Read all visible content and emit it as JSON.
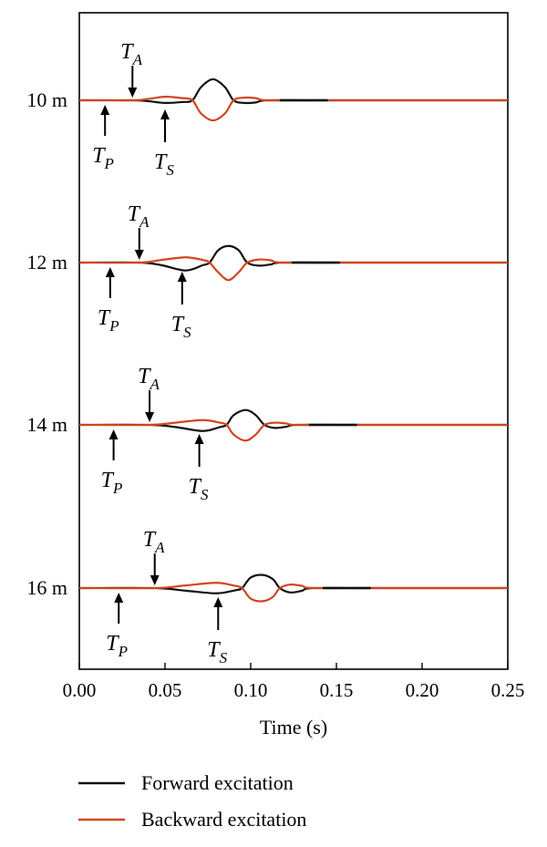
{
  "chart_data": {
    "type": "line",
    "xlabel": "Time (s)",
    "xlim": [
      0,
      0.25
    ],
    "x_ticks": [
      {
        "value": 0.0,
        "label": "0.00"
      },
      {
        "value": 0.05,
        "label": "0.05"
      },
      {
        "value": 0.1,
        "label": "0.10"
      },
      {
        "value": 0.15,
        "label": "0.15"
      },
      {
        "value": 0.2,
        "label": "0.20"
      },
      {
        "value": 0.25,
        "label": "0.25"
      }
    ],
    "ylabel": "",
    "legend_position": "bottom",
    "series": [
      {
        "name": "Forward excitation",
        "color": "#111111"
      },
      {
        "name": "Backward excitation",
        "color": "#d2451e"
      }
    ],
    "rows": [
      {
        "label": "10 m",
        "T_P": 0.015,
        "T_A": 0.031,
        "T_S": 0.05,
        "signal_end": 0.145,
        "forward": [
          [
            0.0,
            0.0
          ],
          [
            0.031,
            0.0
          ],
          [
            0.04,
            -0.02
          ],
          [
            0.05,
            -0.06
          ],
          [
            0.06,
            -0.04
          ],
          [
            0.066,
            0.0
          ],
          [
            0.071,
            0.3
          ],
          [
            0.078,
            0.48
          ],
          [
            0.085,
            0.3
          ],
          [
            0.09,
            0.0
          ],
          [
            0.096,
            -0.06
          ],
          [
            0.103,
            -0.05
          ],
          [
            0.11,
            0.0
          ],
          [
            0.145,
            0.0
          ],
          [
            0.25,
            0.0
          ]
        ],
        "backward": [
          [
            0.0,
            0.0
          ],
          [
            0.031,
            0.0
          ],
          [
            0.04,
            0.03
          ],
          [
            0.05,
            0.08
          ],
          [
            0.06,
            0.05
          ],
          [
            0.066,
            0.0
          ],
          [
            0.071,
            -0.3
          ],
          [
            0.078,
            -0.46
          ],
          [
            0.085,
            -0.3
          ],
          [
            0.09,
            0.0
          ],
          [
            0.096,
            0.06
          ],
          [
            0.103,
            0.05
          ],
          [
            0.11,
            0.0
          ],
          [
            0.145,
            0.0
          ],
          [
            0.25,
            0.0
          ]
        ]
      },
      {
        "label": "12 m",
        "T_P": 0.018,
        "T_A": 0.035,
        "T_S": 0.06,
        "signal_end": 0.152,
        "forward": [
          [
            0.0,
            0.0
          ],
          [
            0.035,
            0.0
          ],
          [
            0.048,
            -0.06
          ],
          [
            0.062,
            -0.18
          ],
          [
            0.072,
            -0.06
          ],
          [
            0.076,
            0.0
          ],
          [
            0.081,
            0.28
          ],
          [
            0.087,
            0.38
          ],
          [
            0.093,
            0.28
          ],
          [
            0.098,
            0.0
          ],
          [
            0.105,
            -0.07
          ],
          [
            0.112,
            -0.04
          ],
          [
            0.118,
            0.0
          ],
          [
            0.152,
            0.0
          ],
          [
            0.25,
            0.0
          ]
        ],
        "backward": [
          [
            0.0,
            0.0
          ],
          [
            0.035,
            0.0
          ],
          [
            0.048,
            0.06
          ],
          [
            0.062,
            0.12
          ],
          [
            0.072,
            0.06
          ],
          [
            0.076,
            0.0
          ],
          [
            0.081,
            -0.22
          ],
          [
            0.087,
            -0.4
          ],
          [
            0.093,
            -0.22
          ],
          [
            0.098,
            0.0
          ],
          [
            0.105,
            0.07
          ],
          [
            0.112,
            0.05
          ],
          [
            0.118,
            0.0
          ],
          [
            0.152,
            0.0
          ],
          [
            0.25,
            0.0
          ]
        ]
      },
      {
        "label": "14 m",
        "T_P": 0.02,
        "T_A": 0.041,
        "T_S": 0.07,
        "signal_end": 0.162,
        "forward": [
          [
            0.0,
            0.0
          ],
          [
            0.041,
            0.0
          ],
          [
            0.056,
            -0.05
          ],
          [
            0.072,
            -0.14
          ],
          [
            0.082,
            -0.05
          ],
          [
            0.086,
            0.0
          ],
          [
            0.09,
            0.22
          ],
          [
            0.097,
            0.34
          ],
          [
            0.103,
            0.22
          ],
          [
            0.108,
            0.0
          ],
          [
            0.114,
            -0.07
          ],
          [
            0.121,
            -0.04
          ],
          [
            0.127,
            0.0
          ],
          [
            0.162,
            0.0
          ],
          [
            0.25,
            0.0
          ]
        ],
        "backward": [
          [
            0.0,
            0.0
          ],
          [
            0.041,
            0.0
          ],
          [
            0.056,
            0.05
          ],
          [
            0.072,
            0.11
          ],
          [
            0.082,
            0.05
          ],
          [
            0.086,
            0.0
          ],
          [
            0.09,
            -0.22
          ],
          [
            0.097,
            -0.36
          ],
          [
            0.103,
            -0.22
          ],
          [
            0.108,
            0.0
          ],
          [
            0.114,
            0.05
          ],
          [
            0.121,
            0.03
          ],
          [
            0.127,
            0.0
          ],
          [
            0.162,
            0.0
          ],
          [
            0.25,
            0.0
          ]
        ]
      },
      {
        "label": "16 m",
        "T_P": 0.023,
        "T_A": 0.044,
        "T_S": 0.081,
        "signal_end": 0.17,
        "forward": [
          [
            0.0,
            0.0
          ],
          [
            0.044,
            0.0
          ],
          [
            0.062,
            -0.06
          ],
          [
            0.08,
            -0.12
          ],
          [
            0.091,
            -0.05
          ],
          [
            0.095,
            0.0
          ],
          [
            0.1,
            0.24
          ],
          [
            0.107,
            0.3
          ],
          [
            0.113,
            0.2
          ],
          [
            0.117,
            0.0
          ],
          [
            0.123,
            -0.1
          ],
          [
            0.13,
            -0.06
          ],
          [
            0.136,
            0.0
          ],
          [
            0.17,
            0.0
          ],
          [
            0.25,
            0.0
          ]
        ],
        "backward": [
          [
            0.0,
            0.0
          ],
          [
            0.044,
            0.0
          ],
          [
            0.062,
            0.06
          ],
          [
            0.08,
            0.12
          ],
          [
            0.091,
            0.05
          ],
          [
            0.095,
            0.0
          ],
          [
            0.1,
            -0.24
          ],
          [
            0.107,
            -0.3
          ],
          [
            0.113,
            -0.2
          ],
          [
            0.117,
            0.0
          ],
          [
            0.123,
            0.08
          ],
          [
            0.13,
            0.05
          ],
          [
            0.136,
            0.0
          ],
          [
            0.17,
            0.0
          ],
          [
            0.25,
            0.0
          ]
        ]
      }
    ],
    "annotations": {
      "T_A": {
        "main": "T",
        "sub": "A"
      },
      "T_P": {
        "main": "T",
        "sub": "P"
      },
      "T_S": {
        "main": "T",
        "sub": "S"
      }
    }
  }
}
